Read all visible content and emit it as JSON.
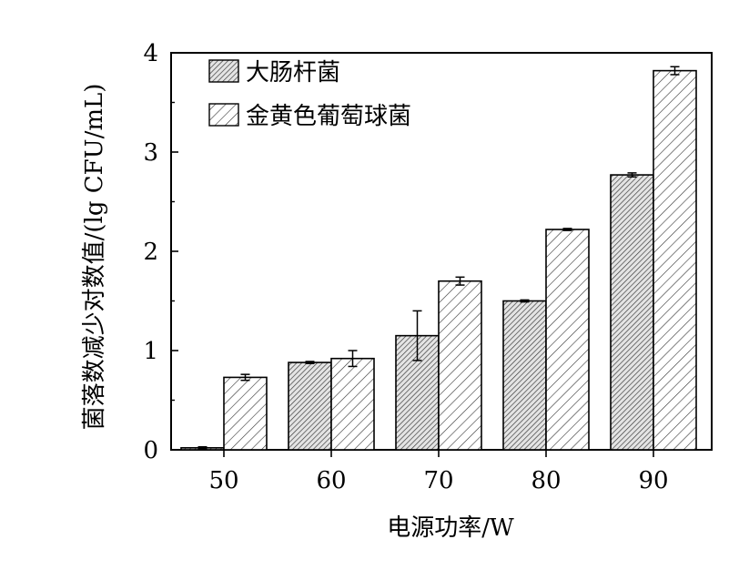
{
  "chart_data": {
    "type": "bar",
    "xlabel": "电源功率/W",
    "ylabel": "菌落数减少对数值/(lg CFU/mL)",
    "ylim": [
      0,
      4
    ],
    "yticks": [
      0,
      1,
      2,
      3,
      4
    ],
    "categories": [
      "50",
      "60",
      "70",
      "80",
      "90"
    ],
    "legend_position": "top-left",
    "grid": false,
    "series": [
      {
        "name": "大肠杆菌",
        "values": [
          0.02,
          0.88,
          1.15,
          1.5,
          2.77
        ],
        "errors": [
          0.01,
          0.01,
          0.25,
          0.01,
          0.02
        ],
        "pattern": "dense-diagonal-hatch"
      },
      {
        "name": "金黄色葡萄球菌",
        "values": [
          0.73,
          0.92,
          1.7,
          2.22,
          3.82
        ],
        "errors": [
          0.03,
          0.08,
          0.04,
          0.01,
          0.04
        ],
        "pattern": "sparse-diagonal-hatch"
      }
    ]
  }
}
